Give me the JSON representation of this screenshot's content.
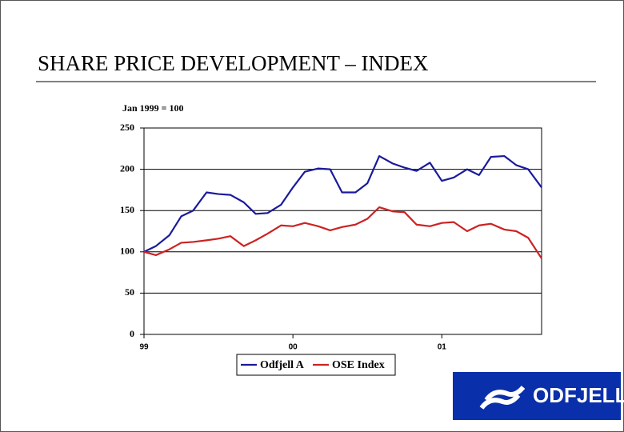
{
  "chart_data": {
    "type": "line",
    "title": "SHARE PRICE DEVELOPMENT – INDEX",
    "subtitle": "Jan 1999 = 100",
    "x": [
      1999,
      1999.08,
      1999.17,
      1999.25,
      1999.33,
      1999.42,
      1999.5,
      1999.58,
      1999.67,
      1999.75,
      1999.83,
      1999.92,
      2000,
      2000.08,
      2000.17,
      2000.25,
      2000.33,
      2000.42,
      2000.5,
      2000.58,
      2000.67,
      2000.75,
      2000.83,
      2000.92,
      2001,
      2001.08,
      2001.17,
      2001.25,
      2001.33,
      2001.42,
      2001.5,
      2001.58,
      2001.67
    ],
    "series": [
      {
        "name": "Odfjell A",
        "color": "#1a1a9c",
        "values": [
          100,
          107,
          120,
          143,
          150,
          172,
          170,
          169,
          160,
          146,
          147,
          157,
          178,
          197,
          201,
          200,
          172,
          172,
          183,
          216,
          207,
          202,
          198,
          208,
          186,
          190,
          200,
          193,
          215,
          216,
          205,
          200,
          178
        ]
      },
      {
        "name": "OSE Index",
        "color": "#cc2222",
        "values": [
          100,
          96,
          103,
          111,
          112,
          114,
          116,
          119,
          107,
          114,
          122,
          132,
          131,
          135,
          131,
          126,
          130,
          133,
          140,
          154,
          149,
          148,
          133,
          131,
          135,
          136,
          125,
          132,
          134,
          127,
          125,
          117,
          92
        ]
      }
    ],
    "xlim": [
      1999,
      2001.67
    ],
    "xticks": [
      {
        "value": 1999,
        "label": "99"
      },
      {
        "value": 2000,
        "label": "00"
      },
      {
        "value": 2001,
        "label": "01"
      }
    ],
    "ylim": [
      0,
      250
    ],
    "yticks": [
      0,
      50,
      100,
      150,
      200,
      250
    ],
    "grid": true,
    "legend": "bottom"
  },
  "logo_text": "ODFJELL"
}
